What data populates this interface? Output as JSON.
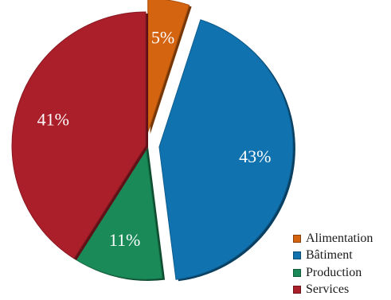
{
  "chart_data": {
    "type": "pie",
    "start_angle_deg": 0,
    "direction": "clockwise",
    "legend_position": "bottom-right",
    "slices": [
      {
        "label": "Alimentation",
        "value": 5,
        "display": "5%",
        "color": "#d4640f",
        "exploded": true
      },
      {
        "label": "Bâtiment",
        "value": 43,
        "display": "43%",
        "color": "#1073b0",
        "exploded": true
      },
      {
        "label": "Production",
        "value": 11,
        "display": "11%",
        "color": "#1a8a58",
        "exploded": false
      },
      {
        "label": "Services",
        "value": 41,
        "display": "41%",
        "color": "#aa1f2a",
        "exploded": false
      }
    ]
  }
}
